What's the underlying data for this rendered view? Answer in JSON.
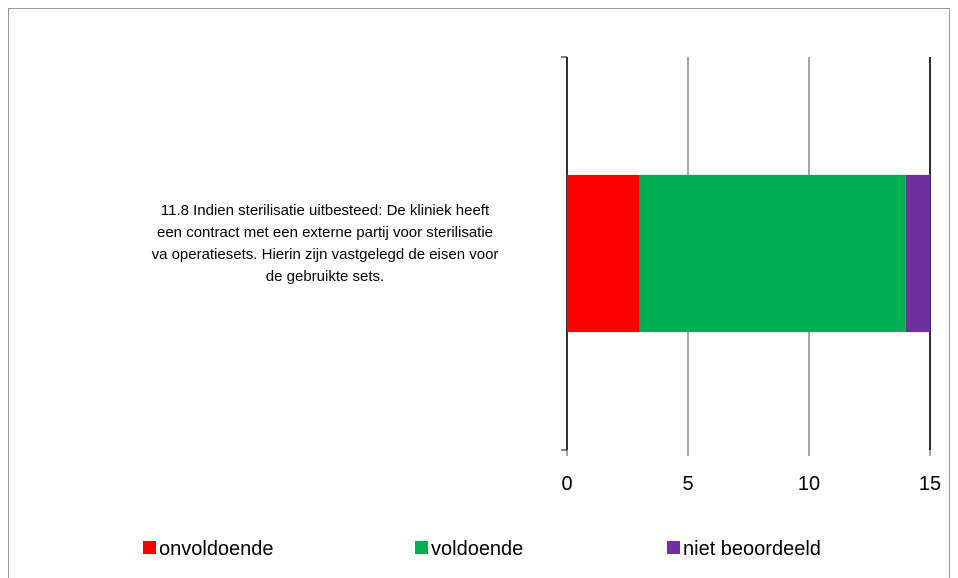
{
  "chart_data": {
    "type": "stacked-barh",
    "categories": [
      "11.8 Indien sterilisatie uitbesteed: De kliniek heeft een contract met een externe partij voor sterilisatie va operatiesets. Hierin zijn vastgelegd de eisen voor de gebruikte sets."
    ],
    "series": [
      {
        "name": "onvoldoende",
        "color": "#ff0000",
        "values": [
          3
        ]
      },
      {
        "name": "voldoende",
        "color": "#00b050",
        "values": [
          11
        ]
      },
      {
        "name": "niet beoordeeld",
        "color": "#7030a0",
        "values": [
          1
        ]
      }
    ],
    "xlim": [
      0,
      15
    ],
    "xticks": [
      0,
      5,
      10,
      15
    ],
    "grid": true,
    "legend": "bottom"
  }
}
